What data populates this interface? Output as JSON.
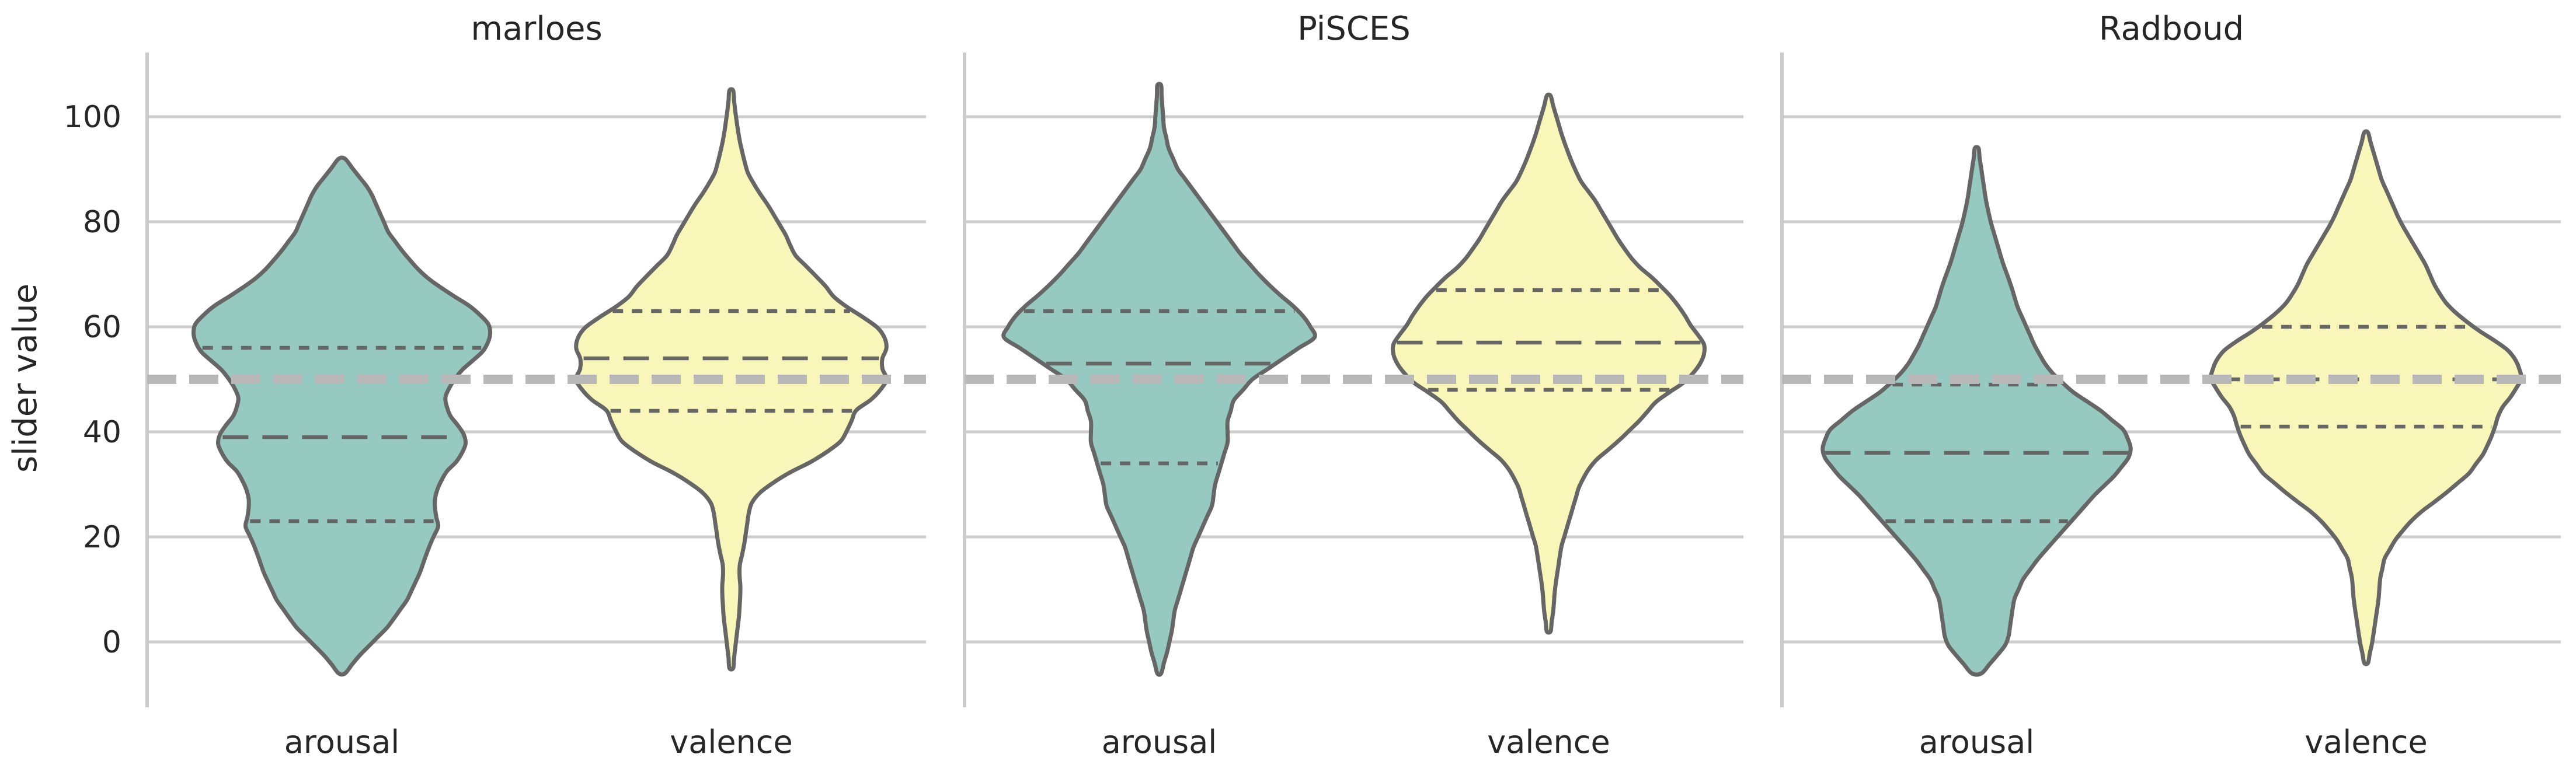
{
  "chart_data": {
    "type": "violin",
    "ylabel": "slider value",
    "ylim": [
      -12,
      112
    ],
    "yticks": [
      0,
      20,
      40,
      60,
      80,
      100
    ],
    "grid": true,
    "reference_line": {
      "y": 50,
      "style": "dashed"
    },
    "categories": [
      "arousal",
      "valence"
    ],
    "colors": {
      "arousal": "#96c9bf",
      "valence": "#f8f6b8"
    },
    "facets": [
      {
        "title": "marloes",
        "violins": [
          {
            "category": "arousal",
            "min": -6,
            "max": 92,
            "quartiles": [
              23,
              39,
              56
            ],
            "profile": [
              [
                -6,
                0.02
              ],
              [
                -3,
                0.1
              ],
              [
                0,
                0.2
              ],
              [
                3,
                0.3
              ],
              [
                8,
                0.42
              ],
              [
                13,
                0.5
              ],
              [
                18,
                0.56
              ],
              [
                22,
                0.62
              ],
              [
                25,
                0.6
              ],
              [
                28,
                0.6
              ],
              [
                32,
                0.66
              ],
              [
                35,
                0.76
              ],
              [
                38,
                0.8
              ],
              [
                40,
                0.78
              ],
              [
                43,
                0.7
              ],
              [
                46,
                0.66
              ],
              [
                49,
                0.7
              ],
              [
                52,
                0.78
              ],
              [
                55,
                0.9
              ],
              [
                58,
                0.96
              ],
              [
                61,
                0.94
              ],
              [
                64,
                0.82
              ],
              [
                67,
                0.66
              ],
              [
                70,
                0.52
              ],
              [
                74,
                0.4
              ],
              [
                78,
                0.3
              ],
              [
                82,
                0.24
              ],
              [
                86,
                0.18
              ],
              [
                89,
                0.1
              ],
              [
                92,
                0.02
              ]
            ]
          },
          {
            "category": "valence",
            "min": -5,
            "max": 105,
            "quartiles": [
              44,
              54,
              63
            ],
            "profile": [
              [
                -5,
                0.01
              ],
              [
                0,
                0.03
              ],
              [
                5,
                0.05
              ],
              [
                10,
                0.06
              ],
              [
                14,
                0.05
              ],
              [
                18,
                0.08
              ],
              [
                22,
                0.1
              ],
              [
                26,
                0.12
              ],
              [
                29,
                0.2
              ],
              [
                32,
                0.36
              ],
              [
                35,
                0.56
              ],
              [
                38,
                0.7
              ],
              [
                41,
                0.76
              ],
              [
                44,
                0.8
              ],
              [
                47,
                0.94
              ],
              [
                50,
                1.0
              ],
              [
                53,
                0.96
              ],
              [
                56,
                1.0
              ],
              [
                59,
                0.98
              ],
              [
                62,
                0.84
              ],
              [
                65,
                0.68
              ],
              [
                68,
                0.6
              ],
              [
                71,
                0.5
              ],
              [
                74,
                0.4
              ],
              [
                77,
                0.36
              ],
              [
                80,
                0.3
              ],
              [
                83,
                0.24
              ],
              [
                86,
                0.17
              ],
              [
                89,
                0.11
              ],
              [
                92,
                0.08
              ],
              [
                96,
                0.05
              ],
              [
                100,
                0.03
              ],
              [
                105,
                0.01
              ]
            ]
          }
        ]
      },
      {
        "title": "PiSCES",
        "violins": [
          {
            "category": "arousal",
            "min": -6,
            "max": 106,
            "quartiles": [
              34,
              53,
              63
            ],
            "profile": [
              [
                -6,
                0.01
              ],
              [
                -2,
                0.05
              ],
              [
                2,
                0.08
              ],
              [
                6,
                0.1
              ],
              [
                10,
                0.14
              ],
              [
                14,
                0.18
              ],
              [
                18,
                0.22
              ],
              [
                22,
                0.28
              ],
              [
                26,
                0.34
              ],
              [
                30,
                0.36
              ],
              [
                34,
                0.4
              ],
              [
                38,
                0.44
              ],
              [
                42,
                0.44
              ],
              [
                46,
                0.48
              ],
              [
                50,
                0.6
              ],
              [
                54,
                0.8
              ],
              [
                58,
                1.0
              ],
              [
                61,
                0.96
              ],
              [
                64,
                0.86
              ],
              [
                67,
                0.74
              ],
              [
                70,
                0.64
              ],
              [
                74,
                0.52
              ],
              [
                78,
                0.42
              ],
              [
                82,
                0.32
              ],
              [
                86,
                0.22
              ],
              [
                90,
                0.12
              ],
              [
                94,
                0.06
              ],
              [
                98,
                0.03
              ],
              [
                102,
                0.02
              ],
              [
                106,
                0.01
              ]
            ]
          },
          {
            "category": "valence",
            "min": 2,
            "max": 104,
            "quartiles": [
              48,
              57,
              67
            ],
            "profile": [
              [
                2,
                0.01
              ],
              [
                6,
                0.03
              ],
              [
                10,
                0.04
              ],
              [
                14,
                0.06
              ],
              [
                18,
                0.08
              ],
              [
                22,
                0.12
              ],
              [
                26,
                0.16
              ],
              [
                30,
                0.2
              ],
              [
                34,
                0.28
              ],
              [
                38,
                0.44
              ],
              [
                42,
                0.58
              ],
              [
                46,
                0.7
              ],
              [
                50,
                0.9
              ],
              [
                54,
                1.0
              ],
              [
                57,
                1.0
              ],
              [
                60,
                0.92
              ],
              [
                63,
                0.86
              ],
              [
                66,
                0.78
              ],
              [
                69,
                0.68
              ],
              [
                72,
                0.56
              ],
              [
                76,
                0.46
              ],
              [
                80,
                0.38
              ],
              [
                84,
                0.3
              ],
              [
                88,
                0.2
              ],
              [
                92,
                0.14
              ],
              [
                96,
                0.09
              ],
              [
                100,
                0.05
              ],
              [
                104,
                0.01
              ]
            ]
          }
        ]
      },
      {
        "title": "Radboud",
        "violins": [
          {
            "category": "arousal",
            "min": -6,
            "max": 94,
            "quartiles": [
              23,
              36,
              49
            ],
            "profile": [
              [
                -6,
                0.03
              ],
              [
                -3,
                0.12
              ],
              [
                0,
                0.2
              ],
              [
                4,
                0.22
              ],
              [
                8,
                0.24
              ],
              [
                12,
                0.3
              ],
              [
                16,
                0.4
              ],
              [
                20,
                0.52
              ],
              [
                24,
                0.64
              ],
              [
                28,
                0.76
              ],
              [
                32,
                0.9
              ],
              [
                36,
                1.0
              ],
              [
                40,
                0.96
              ],
              [
                44,
                0.8
              ],
              [
                48,
                0.6
              ],
              [
                52,
                0.46
              ],
              [
                56,
                0.38
              ],
              [
                60,
                0.32
              ],
              [
                64,
                0.26
              ],
              [
                68,
                0.22
              ],
              [
                72,
                0.17
              ],
              [
                76,
                0.13
              ],
              [
                80,
                0.09
              ],
              [
                84,
                0.06
              ],
              [
                88,
                0.04
              ],
              [
                92,
                0.02
              ],
              [
                94,
                0.01
              ]
            ]
          },
          {
            "category": "valence",
            "min": -4,
            "max": 97,
            "quartiles": [
              41,
              50,
              60
            ],
            "profile": [
              [
                -4,
                0.01
              ],
              [
                0,
                0.04
              ],
              [
                4,
                0.06
              ],
              [
                8,
                0.08
              ],
              [
                12,
                0.09
              ],
              [
                16,
                0.12
              ],
              [
                20,
                0.2
              ],
              [
                24,
                0.32
              ],
              [
                28,
                0.5
              ],
              [
                32,
                0.66
              ],
              [
                36,
                0.76
              ],
              [
                40,
                0.82
              ],
              [
                44,
                0.86
              ],
              [
                47,
                0.94
              ],
              [
                50,
                1.0
              ],
              [
                53,
                0.98
              ],
              [
                56,
                0.9
              ],
              [
                59,
                0.74
              ],
              [
                62,
                0.6
              ],
              [
                65,
                0.5
              ],
              [
                68,
                0.44
              ],
              [
                72,
                0.38
              ],
              [
                76,
                0.3
              ],
              [
                80,
                0.22
              ],
              [
                84,
                0.16
              ],
              [
                88,
                0.1
              ],
              [
                92,
                0.06
              ],
              [
                97,
                0.01
              ]
            ]
          }
        ]
      }
    ]
  }
}
